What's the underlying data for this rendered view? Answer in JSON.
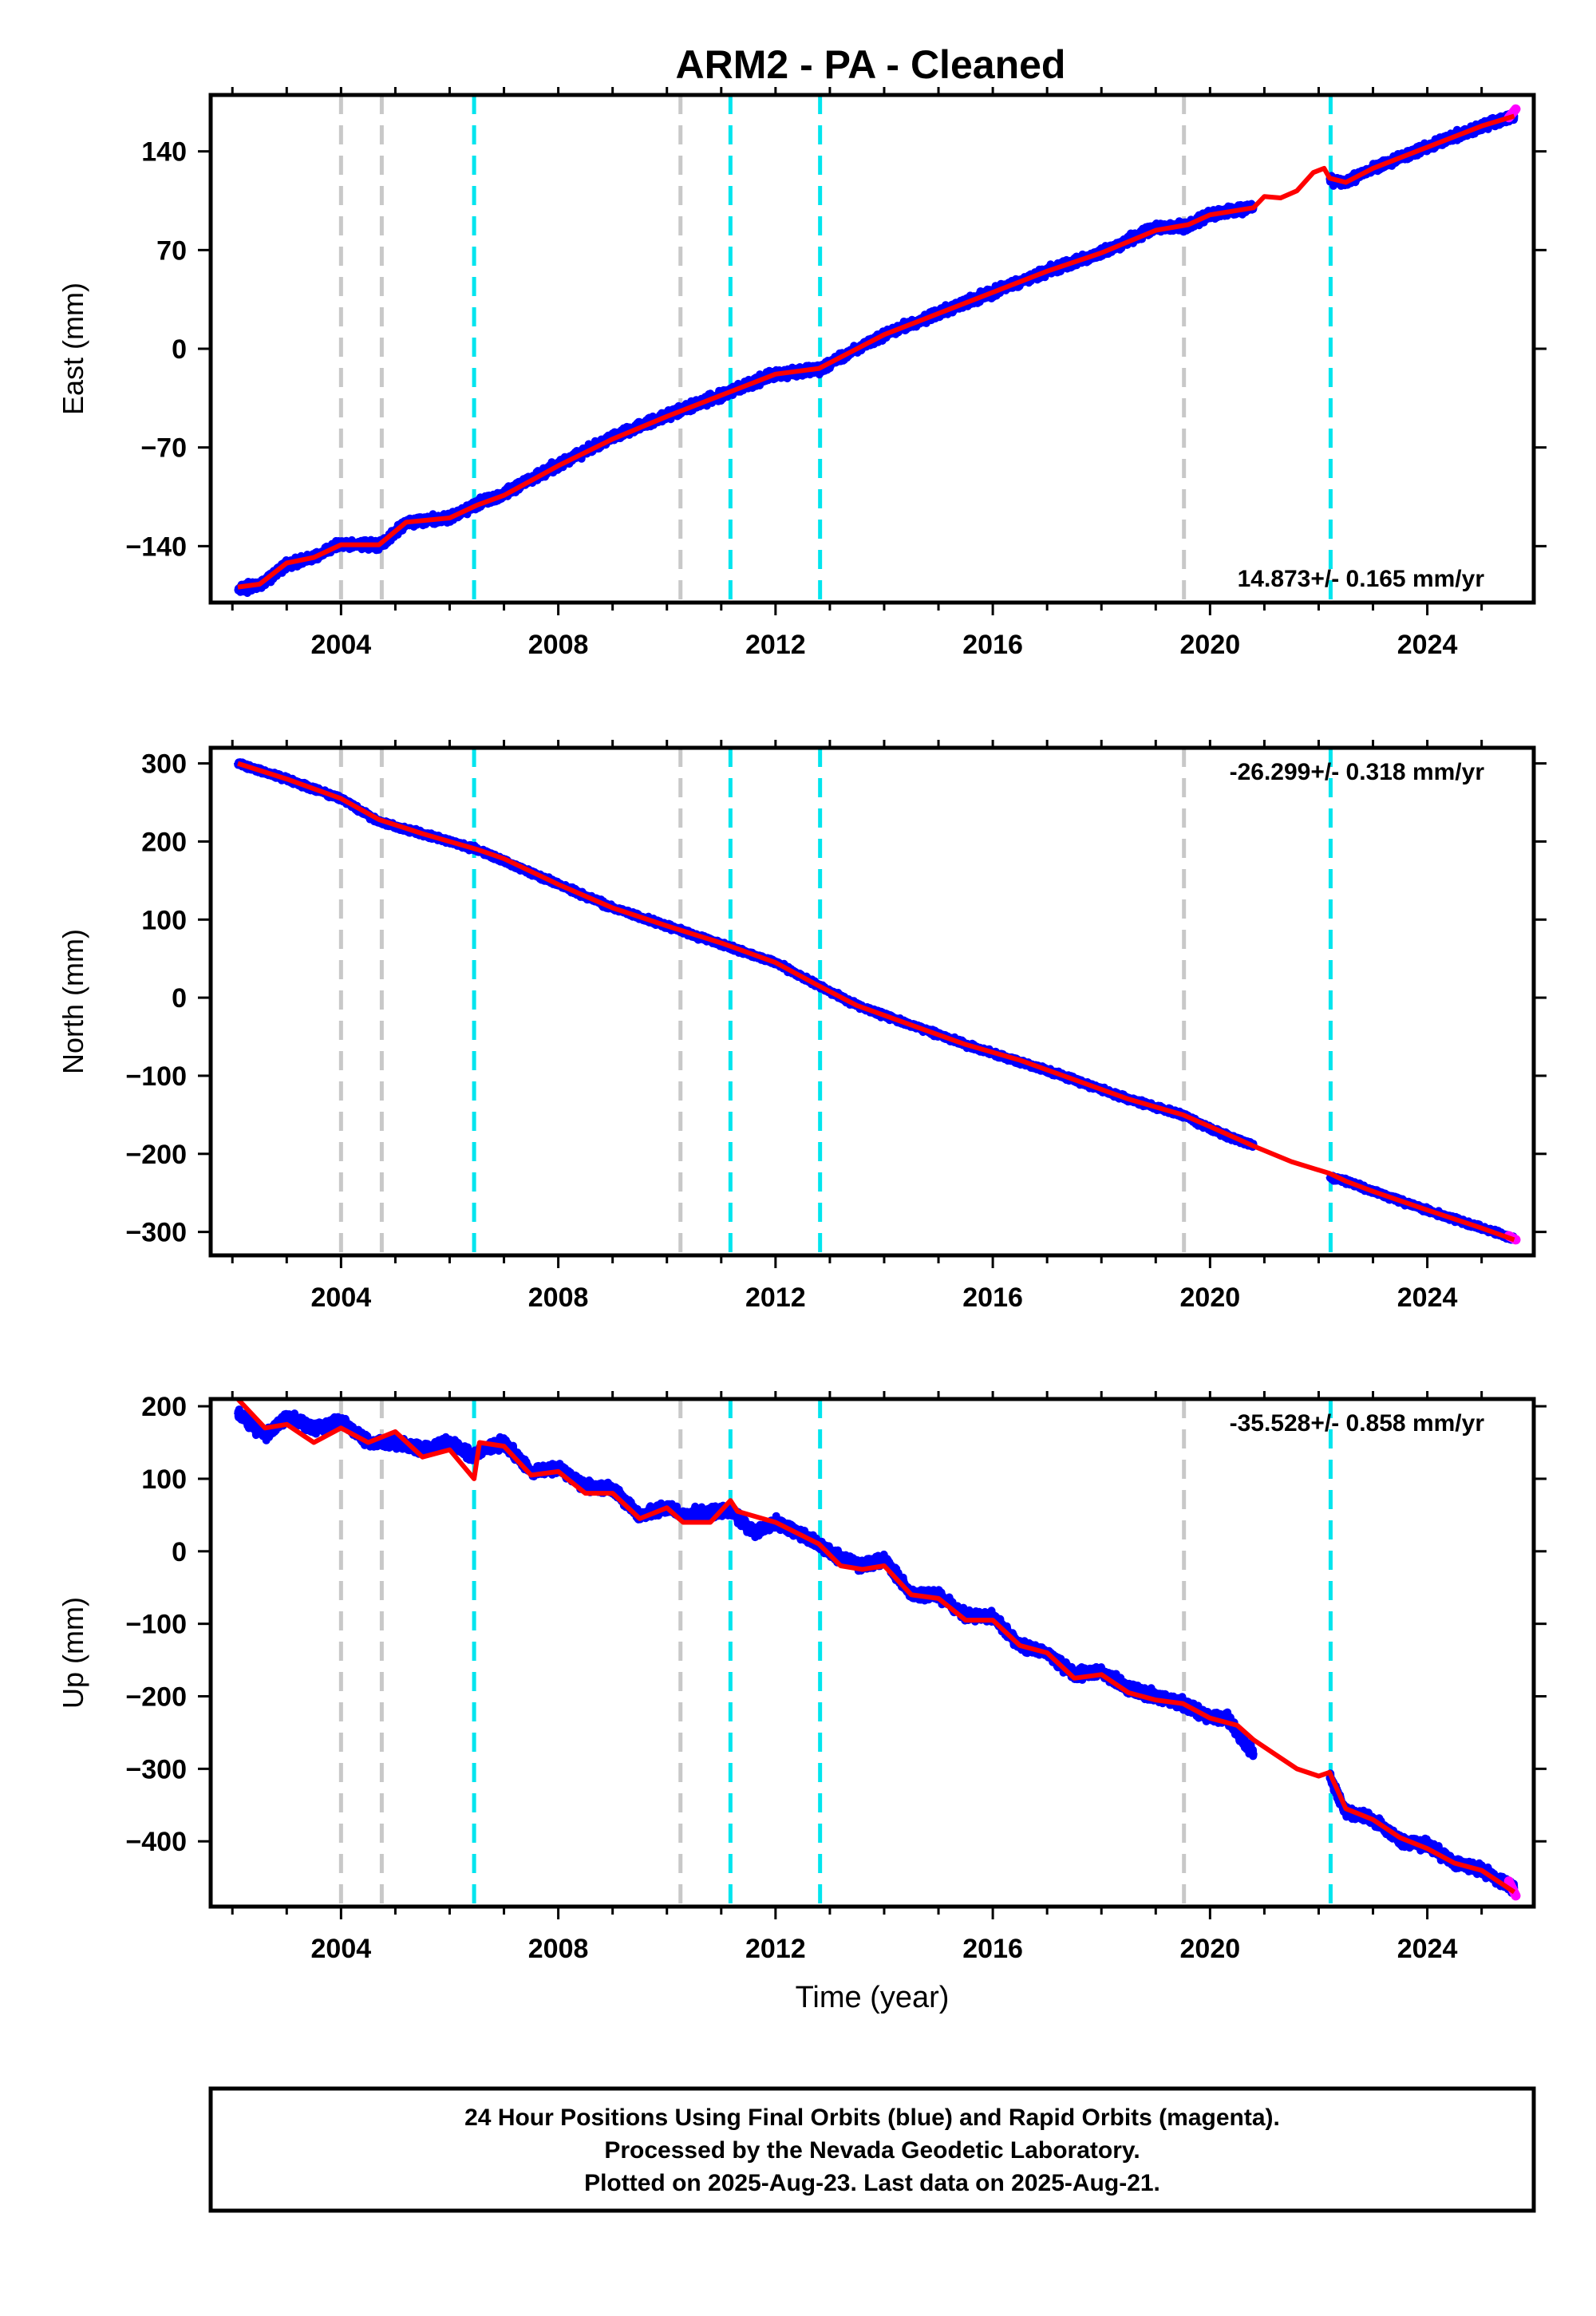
{
  "chart_data": {
    "type": "line",
    "title": "ARM2  - PA - Cleaned",
    "xlabel": "Time (year)",
    "xlim": [
      2001.6,
      2025.96
    ],
    "x_ticks": [
      2004,
      2008,
      2012,
      2016,
      2020,
      2024
    ],
    "x_tick_labels": [
      "2004",
      "2008",
      "2012",
      "2016",
      "2020",
      "2024"
    ],
    "x_minor_step": 1,
    "grid": false,
    "legend": "none",
    "colors": {
      "final": "#0000ff",
      "rapid": "#ff00ff",
      "model": "#ff0000",
      "break_gray": "#c8c8c8",
      "break_cyan": "#00e5ee"
    },
    "breaks_gray": [
      2004.0,
      2004.75,
      2010.25,
      2019.52
    ],
    "breaks_cyan": [
      2006.45,
      2011.17,
      2012.82,
      2022.22
    ],
    "panels": [
      {
        "name": "east",
        "ylabel": "East (mm)",
        "ylim": [
          -180,
          180
        ],
        "y_ticks": [
          -140,
          -70,
          0,
          70,
          140
        ],
        "y_tick_labels": [
          "−140",
          "−70",
          "0",
          "70",
          "140"
        ],
        "rate_label": "14.873+/- 0.165 mm/yr",
        "rate_position": "bottom-right",
        "gap": [
          2020.8,
          2022.2
        ],
        "data_x": [
          2002.1,
          2002.5,
          2003.0,
          2003.5,
          2004.0,
          2004.7,
          2005.2,
          2006.0,
          2006.5,
          2007.0,
          2008.0,
          2009.0,
          2010.0,
          2010.8,
          2011.2,
          2012.0,
          2012.8,
          2013.5,
          2014.0,
          2015.0,
          2016.0,
          2017.0,
          2018.0,
          2019.0,
          2019.6,
          2020.0,
          2020.8,
          2022.2,
          2022.5,
          2023.0,
          2024.0,
          2025.0,
          2025.6
        ],
        "data_y": [
          -170,
          -168,
          -153,
          -148,
          -138,
          -140,
          -123,
          -120,
          -110,
          -103,
          -82,
          -63,
          -47,
          -36,
          -30,
          -18,
          -15,
          0,
          10,
          25,
          40,
          55,
          68,
          86,
          87,
          95,
          100,
          120,
          118,
          128,
          143,
          158,
          165
        ],
        "model_x": [
          2002.1,
          2002.5,
          2003.0,
          2003.5,
          2004.0,
          2004.7,
          2005.2,
          2006.0,
          2006.5,
          2007.0,
          2008.0,
          2009.0,
          2010.0,
          2010.8,
          2011.2,
          2012.0,
          2012.8,
          2013.5,
          2014.0,
          2015.0,
          2016.0,
          2017.0,
          2018.0,
          2019.0,
          2019.6,
          2020.0,
          2020.8,
          2021.0,
          2021.3,
          2021.6,
          2021.9,
          2022.1,
          2022.2,
          2022.5,
          2023.0,
          2024.0,
          2025.0,
          2025.6
        ],
        "model_y": [
          -169,
          -167,
          -152,
          -148,
          -139,
          -139,
          -123,
          -120,
          -111,
          -104,
          -83,
          -64,
          -48,
          -36,
          -30,
          -18,
          -14,
          0,
          10,
          25,
          40,
          55,
          68,
          84,
          88,
          95,
          100,
          108,
          107,
          112,
          125,
          128,
          121,
          118,
          128,
          143,
          158,
          165
        ],
        "rapid_x": [
          2025.5,
          2025.63
        ],
        "rapid_y": [
          164,
          170
        ]
      },
      {
        "name": "north",
        "ylabel": "North (mm)",
        "ylim": [
          -330,
          320
        ],
        "y_ticks": [
          -300,
          -200,
          -100,
          0,
          100,
          200,
          300
        ],
        "y_tick_labels": [
          "−300",
          "−200",
          "−100",
          "0",
          "100",
          "200",
          "300"
        ],
        "rate_label": "-26.299+/- 0.318 mm/yr",
        "rate_position": "top-right",
        "gap": [
          2020.8,
          2022.2
        ],
        "data_x": [
          2002.1,
          2003.0,
          2004.0,
          2004.7,
          2005.5,
          2006.5,
          2007.0,
          2008.0,
          2009.0,
          2010.0,
          2011.0,
          2012.0,
          2012.8,
          2013.5,
          2014.5,
          2015.5,
          2016.5,
          2017.5,
          2018.5,
          2019.5,
          2020.0,
          2020.8,
          2022.2,
          2022.5,
          2023.0,
          2024.0,
          2025.0,
          2025.6
        ],
        "data_y": [
          300,
          280,
          255,
          225,
          210,
          190,
          175,
          145,
          115,
          92,
          68,
          45,
          15,
          -10,
          -35,
          -60,
          -82,
          -105,
          -130,
          -150,
          -168,
          -190,
          -230,
          -235,
          -248,
          -272,
          -295,
          -308
        ],
        "model_x": [
          2002.1,
          2003.0,
          2004.0,
          2004.7,
          2005.5,
          2006.5,
          2007.0,
          2008.0,
          2009.0,
          2010.0,
          2011.0,
          2012.0,
          2012.8,
          2013.5,
          2014.5,
          2015.5,
          2016.5,
          2017.5,
          2018.5,
          2019.5,
          2020.0,
          2020.8,
          2021.5,
          2022.2,
          2022.5,
          2023.0,
          2024.0,
          2025.0,
          2025.6
        ],
        "model_y": [
          300,
          280,
          255,
          228,
          210,
          190,
          178,
          145,
          115,
          92,
          70,
          45,
          15,
          -10,
          -35,
          -60,
          -80,
          -105,
          -130,
          -150,
          -165,
          -190,
          -210,
          -225,
          -235,
          -248,
          -272,
          -295,
          -310
        ],
        "rapid_x": [
          2025.5,
          2025.63
        ],
        "rapid_y": [
          -305,
          -310
        ]
      },
      {
        "name": "up",
        "ylabel": "Up (mm)",
        "ylim": [
          -490,
          210
        ],
        "y_ticks": [
          -400,
          -300,
          -200,
          -100,
          0,
          100,
          200
        ],
        "y_tick_labels": [
          "−400",
          "−300",
          "−200",
          "−100",
          "0",
          "100",
          "200"
        ],
        "rate_label": "-35.528+/- 0.858 mm/yr",
        "rate_position": "top-right",
        "gap": [
          2020.8,
          2022.2
        ],
        "data_x": [
          2002.1,
          2002.6,
          2003.0,
          2003.5,
          2004.0,
          2004.5,
          2005.0,
          2005.5,
          2006.0,
          2006.45,
          2006.6,
          2007.0,
          2007.5,
          2008.0,
          2008.5,
          2009.0,
          2009.5,
          2010.0,
          2010.3,
          2010.8,
          2011.2,
          2011.6,
          2012.0,
          2012.8,
          2013.2,
          2013.6,
          2014.0,
          2014.5,
          2015.0,
          2015.5,
          2016.0,
          2016.5,
          2017.0,
          2017.5,
          2018.0,
          2018.5,
          2019.0,
          2019.5,
          2020.0,
          2020.3,
          2020.8,
          2022.2,
          2022.5,
          2023.0,
          2023.5,
          2024.0,
          2024.5,
          2025.0,
          2025.6
        ],
        "data_y": [
          190,
          160,
          185,
          170,
          180,
          150,
          150,
          140,
          150,
          130,
          140,
          150,
          110,
          115,
          90,
          85,
          50,
          60,
          50,
          55,
          55,
          25,
          40,
          10,
          -10,
          -20,
          -10,
          -60,
          -60,
          -90,
          -90,
          -130,
          -140,
          -170,
          -165,
          -190,
          -200,
          -210,
          -230,
          -230,
          -280,
          -310,
          -360,
          -370,
          -400,
          -405,
          -430,
          -440,
          -465
        ],
        "model_x": [
          2002.1,
          2002.6,
          2003.0,
          2003.5,
          2004.0,
          2004.5,
          2005.0,
          2005.5,
          2006.0,
          2006.45,
          2006.55,
          2007.0,
          2007.5,
          2008.0,
          2008.5,
          2009.0,
          2009.5,
          2010.0,
          2010.3,
          2010.8,
          2011.17,
          2011.3,
          2012.0,
          2012.8,
          2013.2,
          2013.6,
          2014.0,
          2014.5,
          2015.0,
          2015.5,
          2016.0,
          2016.5,
          2017.0,
          2017.5,
          2018.0,
          2018.5,
          2019.0,
          2019.5,
          2020.0,
          2020.5,
          2020.8,
          2021.2,
          2021.6,
          2022.0,
          2022.2,
          2022.5,
          2023.0,
          2023.5,
          2024.0,
          2024.5,
          2025.0,
          2025.6
        ],
        "model_y": [
          210,
          170,
          175,
          150,
          170,
          150,
          165,
          130,
          140,
          100,
          150,
          145,
          105,
          110,
          80,
          80,
          45,
          60,
          40,
          40,
          70,
          55,
          40,
          10,
          -20,
          -25,
          -20,
          -60,
          -65,
          -95,
          -95,
          -130,
          -140,
          -175,
          -170,
          -195,
          -205,
          -210,
          -230,
          -240,
          -260,
          -280,
          -300,
          -310,
          -305,
          -355,
          -370,
          -395,
          -410,
          -430,
          -440,
          -470
        ],
        "rapid_x": [
          2025.5,
          2025.63
        ],
        "rapid_y": [
          -455,
          -475
        ]
      }
    ]
  },
  "footer": {
    "line1": "24 Hour Positions Using Final Orbits (blue) and Rapid Orbits (magenta).",
    "line2": "Processed by the Nevada Geodetic Laboratory.",
    "line3": "Plotted on 2025-Aug-23. Last data on 2025-Aug-21."
  }
}
